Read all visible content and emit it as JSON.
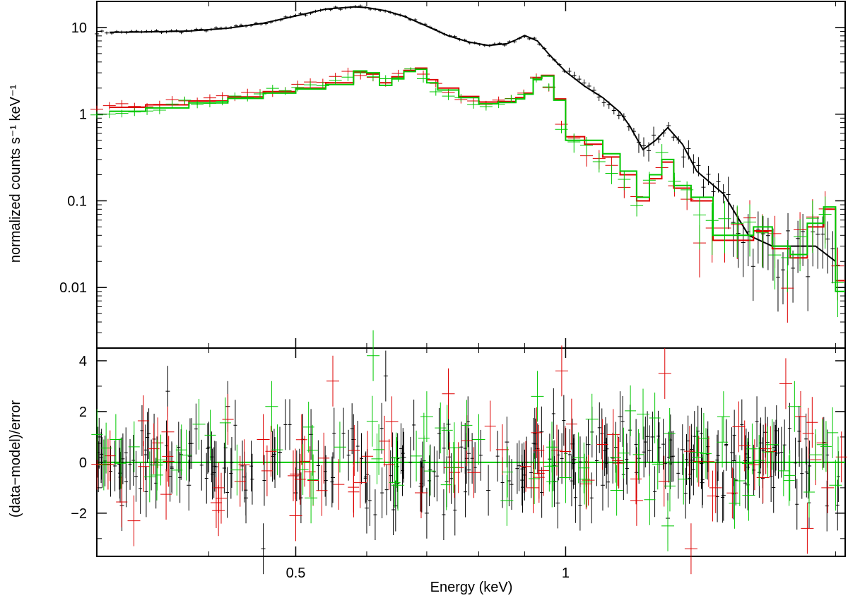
{
  "chart_data": [
    {
      "type": "line",
      "panel": "spectrum",
      "xlabel": "",
      "ylabel": "normalized counts s⁻¹ keV⁻¹",
      "xscale": "log",
      "yscale": "log",
      "xlim": [
        0.3,
        2.05
      ],
      "ylim": [
        0.002,
        20
      ],
      "xticks": [
        0.5,
        1
      ],
      "yticks": [
        {
          "value": 10,
          "label": "10"
        },
        {
          "value": 1,
          "label": "1"
        },
        {
          "value": 0.1,
          "label": "0.1"
        },
        {
          "value": 0.01,
          "label": "0.01"
        }
      ],
      "series": [
        {
          "color": "#000000",
          "x": [
            0.31,
            0.34,
            0.38,
            0.42,
            0.46,
            0.5,
            0.54,
            0.58,
            0.6,
            0.63,
            0.66,
            0.7,
            0.74,
            0.78,
            0.82,
            0.86,
            0.88,
            0.9,
            0.93,
            0.96,
            1.0,
            1.05,
            1.1,
            1.15,
            1.18,
            1.22,
            1.26,
            1.3,
            1.35,
            1.4,
            1.5,
            1.6,
            1.7,
            1.8,
            1.9,
            2.0
          ],
          "model": [
            8.8,
            8.9,
            9.1,
            9.8,
            11.2,
            13.6,
            16.3,
            17.3,
            17.0,
            15.6,
            13.5,
            10.4,
            8.0,
            6.8,
            6.2,
            6.5,
            7.2,
            8.1,
            7.0,
            4.8,
            3.1,
            2.1,
            1.55,
            1.05,
            0.72,
            0.39,
            0.5,
            0.7,
            0.45,
            0.22,
            0.12,
            0.04,
            0.03,
            0.03,
            0.03,
            0.02
          ]
        },
        {
          "color": "#dd0000",
          "x": [
            0.31,
            0.34,
            0.38,
            0.42,
            0.46,
            0.5,
            0.54,
            0.58,
            0.6,
            0.62,
            0.64,
            0.66,
            0.68,
            0.7,
            0.72,
            0.76,
            0.8,
            0.84,
            0.88,
            0.9,
            0.92,
            0.94,
            0.97,
            1.0,
            1.05,
            1.1,
            1.15,
            1.2,
            1.24,
            1.28,
            1.32,
            1.38,
            1.46,
            1.55,
            1.62,
            1.7,
            1.78,
            1.86,
            1.94,
            2.0
          ],
          "model": [
            1.2,
            1.28,
            1.42,
            1.58,
            1.82,
            2.0,
            2.3,
            3.05,
            2.9,
            2.3,
            2.7,
            3.2,
            3.4,
            2.5,
            2.0,
            1.6,
            1.38,
            1.4,
            1.55,
            1.75,
            2.6,
            2.8,
            1.5,
            0.55,
            0.45,
            0.32,
            0.2,
            0.1,
            0.18,
            0.28,
            0.14,
            0.1,
            0.035,
            0.035,
            0.045,
            0.028,
            0.022,
            0.05,
            0.08,
            0.012
          ]
        },
        {
          "color": "#00c800",
          "x": [
            0.31,
            0.34,
            0.38,
            0.42,
            0.46,
            0.5,
            0.54,
            0.58,
            0.6,
            0.62,
            0.64,
            0.66,
            0.68,
            0.7,
            0.72,
            0.76,
            0.8,
            0.84,
            0.88,
            0.9,
            0.92,
            0.94,
            0.97,
            1.0,
            1.05,
            1.1,
            1.15,
            1.2,
            1.24,
            1.28,
            1.32,
            1.38,
            1.46,
            1.55,
            1.62,
            1.7,
            1.78,
            1.86,
            1.94,
            2.0
          ],
          "model": [
            1.08,
            1.18,
            1.35,
            1.52,
            1.75,
            1.95,
            2.2,
            3.15,
            3.0,
            2.15,
            2.55,
            3.1,
            3.3,
            2.3,
            1.9,
            1.55,
            1.32,
            1.36,
            1.5,
            1.7,
            2.5,
            2.75,
            1.45,
            0.5,
            0.5,
            0.35,
            0.22,
            0.11,
            0.2,
            0.3,
            0.15,
            0.11,
            0.04,
            0.04,
            0.05,
            0.03,
            0.024,
            0.055,
            0.085,
            0.009
          ]
        }
      ]
    },
    {
      "type": "scatter",
      "panel": "residuals",
      "xlabel": "Energy (keV)",
      "ylabel": "(data−model)/error",
      "xscale": "log",
      "xlim": [
        0.3,
        2.05
      ],
      "ylim": [
        -3.7,
        4.5
      ],
      "xticks": [
        0.5,
        1
      ],
      "yticks": [
        {
          "value": 4,
          "label": "4"
        },
        {
          "value": 2,
          "label": "2"
        },
        {
          "value": 0,
          "label": "0"
        },
        {
          "value": -2,
          "label": "−2"
        }
      ],
      "zero_line_color": "#00c800",
      "series": [
        {
          "color": "#000000",
          "x": [
            0.32,
            0.34,
            0.36,
            0.38,
            0.4,
            0.42,
            0.44,
            0.46,
            0.48,
            0.5,
            0.52,
            0.55,
            0.58,
            0.6,
            0.63,
            0.66,
            0.7,
            0.74,
            0.78,
            0.82,
            0.86,
            0.9,
            0.94,
            0.98,
            1.02,
            1.06,
            1.1,
            1.15,
            1.2,
            1.25,
            1.3,
            1.35,
            1.42,
            1.5,
            1.6
          ],
          "y": [
            -1.7,
            0.3,
            2.8,
            -0.9,
            0.6,
            2.2,
            -1.4,
            -3.4,
            0.4,
            -1.2,
            1.1,
            -0.6,
            0.9,
            -1.8,
            3.4,
            0.2,
            -2.0,
            1.5,
            -0.3,
            -1.1,
            0.8,
            -0.5,
            1.2,
            -1.6,
            0.1,
            0.7,
            -0.9,
            1.8,
            -0.4,
            1.0,
            -2.2,
            0.5,
            -0.8,
            -1.3,
            0.2
          ]
        },
        {
          "color": "#dd0000",
          "x": [
            0.33,
            0.36,
            0.41,
            0.46,
            0.5,
            0.55,
            0.59,
            0.64,
            0.69,
            0.74,
            0.79,
            0.85,
            0.92,
            0.99,
            1.06,
            1.13,
            1.2,
            1.29,
            1.38,
            1.47,
            1.56,
            1.66,
            1.76,
            1.86,
            1.96
          ],
          "y": [
            -2.3,
            1.2,
            -1.9,
            0.9,
            -2.1,
            3.2,
            -0.8,
            1.6,
            -1.2,
            2.7,
            -0.4,
            0.5,
            -1.0,
            3.6,
            -0.7,
            1.1,
            -1.5,
            3.5,
            -3.4,
            -1.0,
            1.4,
            -0.6,
            3.1,
            -2.6,
            -1.0
          ]
        },
        {
          "color": "#00c800",
          "x": [
            0.315,
            0.35,
            0.39,
            0.43,
            0.47,
            0.52,
            0.56,
            0.61,
            0.65,
            0.7,
            0.75,
            0.8,
            0.86,
            0.93,
            1.0,
            1.07,
            1.14,
            1.22,
            1.3,
            1.4,
            1.5,
            1.6,
            1.7,
            1.8,
            1.9,
            2.0
          ],
          "y": [
            0.9,
            -0.5,
            1.5,
            -0.3,
            2.2,
            -1.4,
            0.6,
            4.2,
            -0.9,
            1.8,
            -0.2,
            0.9,
            -1.5,
            2.6,
            -0.6,
            1.7,
            -1.1,
            1.9,
            -2.5,
            0.4,
            1.8,
            -1.3,
            0.7,
            2.2,
            0.3,
            -0.9
          ]
        }
      ]
    }
  ]
}
